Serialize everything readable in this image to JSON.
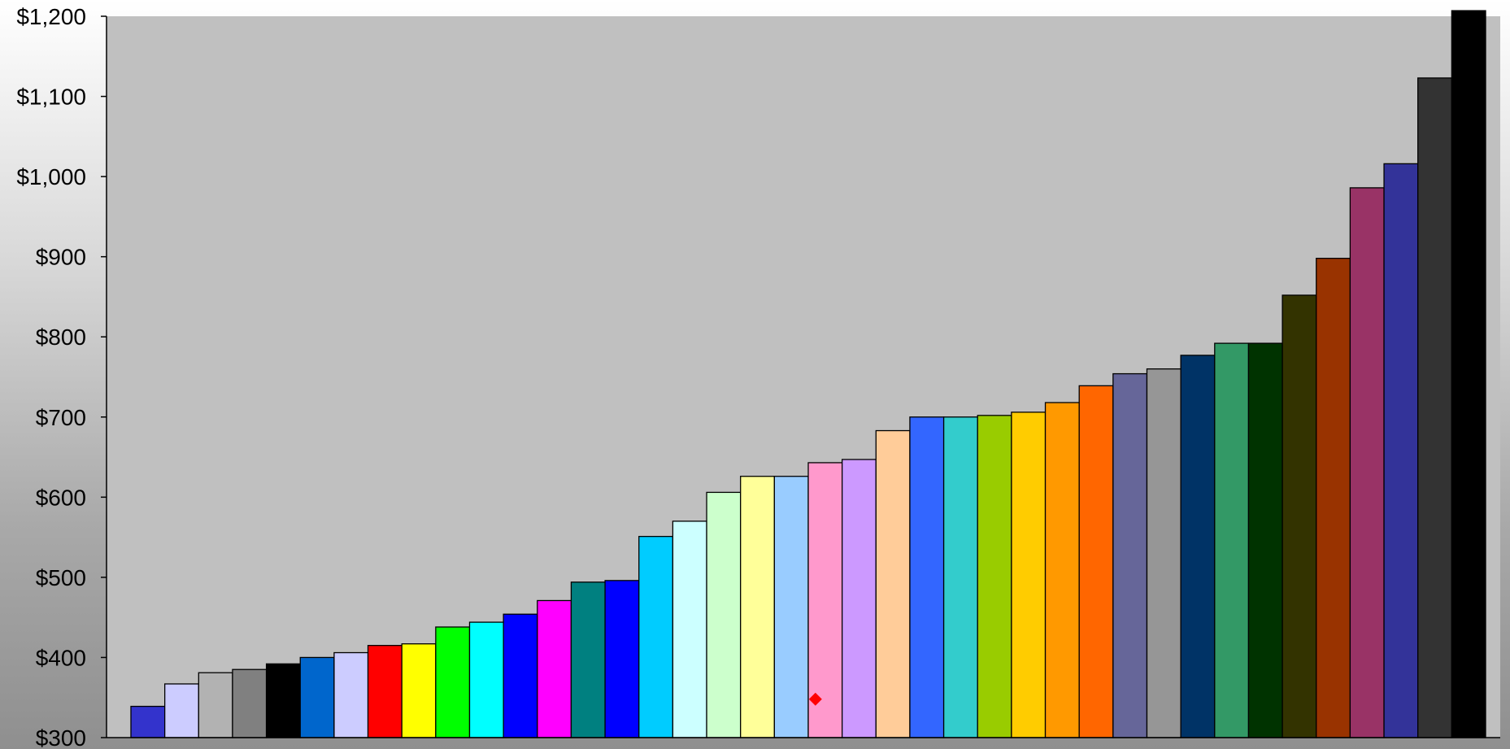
{
  "chart_data": {
    "type": "bar",
    "title": "",
    "xlabel": "",
    "ylabel": "",
    "ylim": [
      300,
      1200
    ],
    "yticks": [
      300,
      400,
      500,
      600,
      700,
      800,
      900,
      1000,
      1100,
      1200
    ],
    "ytick_labels": [
      "$300",
      "$400",
      "$500",
      "$600",
      "$700",
      "$800",
      "$900",
      "$1,000",
      "$1,100",
      "$1,200"
    ],
    "grid": false,
    "legend": "none",
    "plot_background": "#c0c0c0",
    "values": [
      339,
      367,
      381,
      385,
      392,
      400,
      406,
      415,
      417,
      438,
      444,
      454,
      471,
      494,
      496,
      551,
      570,
      606,
      626,
      626,
      643,
      647,
      683,
      700,
      700,
      702,
      706,
      718,
      739,
      754,
      760,
      777,
      792,
      792,
      852,
      898,
      986,
      1016,
      1123,
      1207
    ],
    "colors": [
      "#3333cc",
      "#ccccff",
      "#b2b2b2",
      "#808080",
      "#000000",
      "#0066cc",
      "#ccccff",
      "#ff0000",
      "#ffff00",
      "#00ff00",
      "#00ffff",
      "#0000ff",
      "#ff00ff",
      "#008080",
      "#0000ff",
      "#00ccff",
      "#ccffff",
      "#ccffcc",
      "#ffff99",
      "#99ccff",
      "#ff99cc",
      "#cc99ff",
      "#ffcc99",
      "#3366ff",
      "#33cccc",
      "#99cc00",
      "#ffcc00",
      "#ff9900",
      "#ff6600",
      "#666699",
      "#969696",
      "#003366",
      "#339966",
      "#003300",
      "#333300",
      "#993300",
      "#993366",
      "#333399",
      "#333333",
      "#000000"
    ],
    "marker": {
      "type": "diamond",
      "color": "#ff0000",
      "bar_index": 20,
      "y": 348
    }
  }
}
